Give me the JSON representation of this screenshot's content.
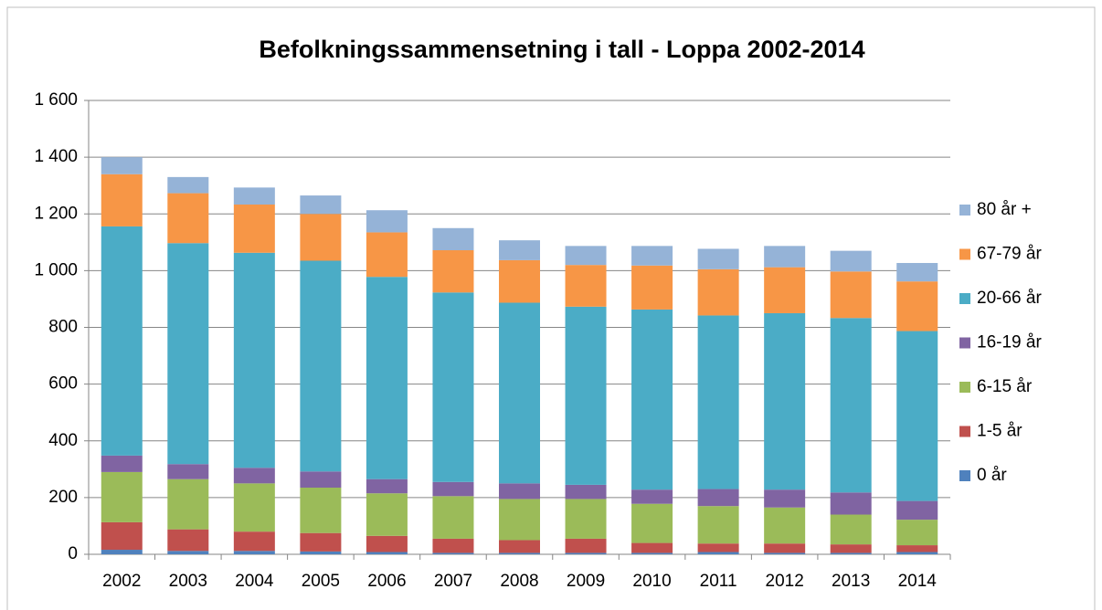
{
  "chart_data": {
    "type": "stacked_bar",
    "title": "Befolkningssammensetning i tall - Loppa 2002-2014",
    "categories": [
      "2002",
      "2003",
      "2004",
      "2005",
      "2006",
      "2007",
      "2008",
      "2009",
      "2010",
      "2011",
      "2012",
      "2013",
      "2014"
    ],
    "series": [
      {
        "name": "0 år",
        "color": "#4f81bd",
        "values": [
          16,
          12,
          12,
          10,
          8,
          5,
          5,
          5,
          5,
          8,
          5,
          5,
          8
        ]
      },
      {
        "name": "1-5 år",
        "color": "#c0504d",
        "values": [
          97,
          76,
          68,
          65,
          57,
          50,
          45,
          50,
          35,
          30,
          33,
          30,
          24
        ]
      },
      {
        "name": "6-15 år",
        "color": "#9bbb59",
        "values": [
          177,
          177,
          170,
          160,
          150,
          150,
          145,
          140,
          138,
          132,
          127,
          105,
          90
        ]
      },
      {
        "name": "16-19 år",
        "color": "#8064a2",
        "values": [
          58,
          53,
          55,
          57,
          50,
          50,
          55,
          50,
          50,
          60,
          63,
          78,
          66
        ]
      },
      {
        "name": "20-66 år",
        "color": "#4bacc6",
        "values": [
          808,
          779,
          758,
          743,
          713,
          668,
          637,
          628,
          635,
          612,
          622,
          615,
          599
        ]
      },
      {
        "name": "67-79 år",
        "color": "#f79646",
        "values": [
          184,
          176,
          170,
          165,
          157,
          149,
          150,
          147,
          155,
          163,
          162,
          164,
          175
        ]
      },
      {
        "name": "80 år +",
        "color": "#95b3d7",
        "values": [
          60,
          57,
          60,
          65,
          78,
          78,
          70,
          67,
          69,
          72,
          75,
          73,
          65
        ]
      }
    ],
    "ylim": [
      0,
      1600
    ],
    "yticks": [
      0,
      200,
      400,
      600,
      800,
      {
        "value": 1000,
        "label": "1 000"
      },
      {
        "value": 1200,
        "label": "1 200"
      },
      {
        "value": 1400,
        "label": "1 400"
      },
      {
        "value": 1600,
        "label": "1 600"
      }
    ],
    "grid": true,
    "legend": "right"
  }
}
